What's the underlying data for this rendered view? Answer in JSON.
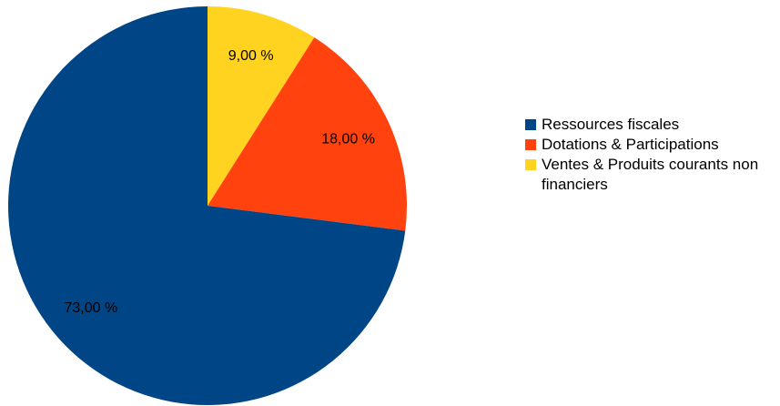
{
  "chart_data": {
    "type": "pie",
    "start_angle_deg": 0,
    "direction": "clockwise",
    "slices": [
      {
        "name": "Ventes & Produits courants non financiers",
        "value": 9.0,
        "label": "9,00 %",
        "color": "#FFD320"
      },
      {
        "name": "Dotations & Participations",
        "value": 18.0,
        "label": "18,00 %",
        "color": "#FF420E"
      },
      {
        "name": "Ressources fiscales",
        "value": 73.0,
        "label": "73,00 %",
        "color": "#004586"
      }
    ],
    "legend": {
      "placement": "right",
      "items": [
        {
          "label": "Ressources fiscales",
          "color": "#004586"
        },
        {
          "label": "Dotations & Participations",
          "color": "#FF420E"
        },
        {
          "label": "Ventes & Produits courants non financiers",
          "color": "#FFD320"
        }
      ]
    }
  }
}
